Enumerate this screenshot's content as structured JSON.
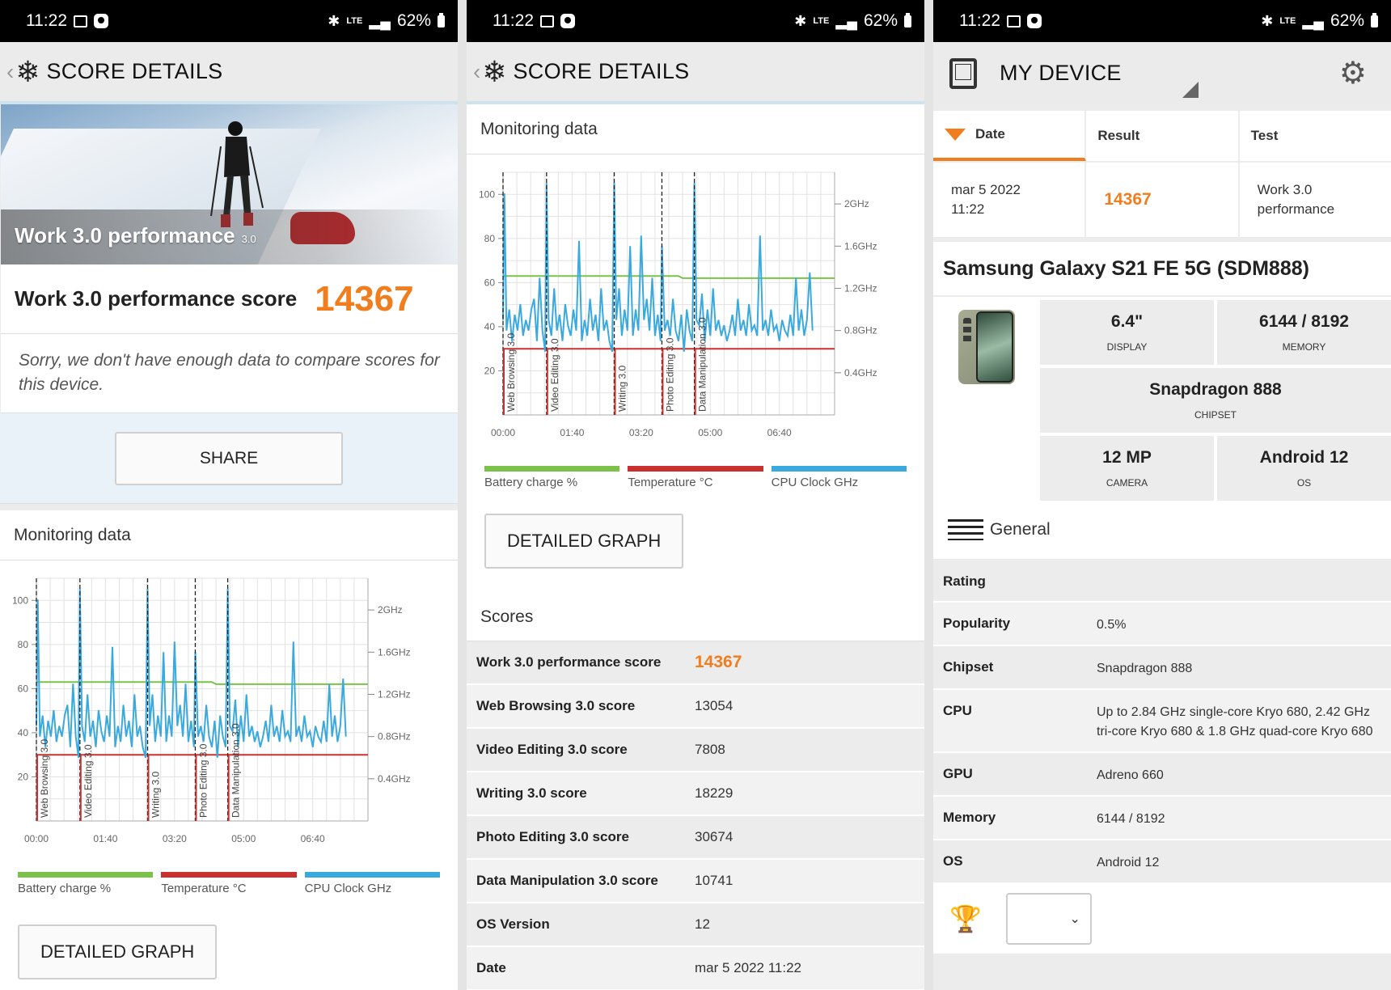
{
  "status": {
    "time": "11:22",
    "battery": "62%",
    "net": "LTE"
  },
  "colors": {
    "accent": "#f07d1e",
    "battery": "#7cc24a",
    "temperature": "#c9302f",
    "cpu": "#3aa9de",
    "divider": "#cfe3ef"
  },
  "screen1": {
    "back_icon": "back-chevron-icon",
    "title": "SCORE DETAILS",
    "hero_title": "Work 3.0 performance",
    "hero_badge": "3.0",
    "score_label": "Work 3.0 performance score",
    "score_value": "14367",
    "sorry_text": "Sorry, we don't have enough data to compare scores for this device.",
    "share_label": "SHARE",
    "monitoring_title": "Monitoring data",
    "detail_button": "DETAILED GRAPH"
  },
  "screen2": {
    "title": "SCORE DETAILS",
    "monitoring_title": "Monitoring data",
    "detail_button": "DETAILED GRAPH",
    "scores_title": "Scores",
    "rows": [
      {
        "label": "Work 3.0 performance score",
        "value": "14367"
      },
      {
        "label": "Web Browsing 3.0 score",
        "value": "13054"
      },
      {
        "label": "Video Editing 3.0 score",
        "value": "7808"
      },
      {
        "label": "Writing 3.0 score",
        "value": "18229"
      },
      {
        "label": "Photo Editing 3.0 score",
        "value": "30674"
      },
      {
        "label": "Data Manipulation 3.0 score",
        "value": "10741"
      },
      {
        "label": "OS Version",
        "value": "12"
      },
      {
        "label": "Date",
        "value": "mar 5 2022 11:22"
      }
    ]
  },
  "screen3": {
    "title": "MY DEVICE",
    "tabs": {
      "date": "Date",
      "result": "Result",
      "test": "Test"
    },
    "result": {
      "date": "mar 5 2022",
      "time": "11:22",
      "score": "14367",
      "test": "Work 3.0 performance"
    },
    "device_name": "Samsung Galaxy S21 FE 5G (SDM888)",
    "specs": {
      "display": {
        "value": "6.4\"",
        "label": "DISPLAY"
      },
      "memory": {
        "value": "6144 / 8192",
        "label": "MEMORY"
      },
      "chipset": {
        "value": "Snapdragon 888",
        "label": "CHIPSET"
      },
      "camera": {
        "value": "12 MP",
        "label": "CAMERA"
      },
      "os": {
        "value": "Android 12",
        "label": "OS"
      }
    },
    "general_label": "General",
    "info": [
      {
        "label": "Rating",
        "value": ""
      },
      {
        "label": "Popularity",
        "value": "0.5%"
      },
      {
        "label": "Chipset",
        "value": "Snapdragon 888"
      },
      {
        "label": "CPU",
        "value": "Up to 2.84 GHz single-core Kryo 680, 2.42 GHz tri-core Kryo 680 & 1.8 GHz quad-core Kryo 680"
      },
      {
        "label": "GPU",
        "value": "Adreno 660"
      },
      {
        "label": "Memory",
        "value": "6144 / 8192"
      },
      {
        "label": "OS",
        "value": "Android 12"
      }
    ]
  },
  "chart_data": {
    "type": "line",
    "title": "",
    "xlabel": "",
    "ylabel": "",
    "x_ticks": [
      "00:00",
      "01:40",
      "03:20",
      "05:00",
      "06:40"
    ],
    "y_ticks": [
      20,
      40,
      60,
      80,
      100
    ],
    "y2_ticks": [
      "0.4GHz",
      "0.8GHz",
      "1.2GHz",
      "1.6GHz",
      "2GHz"
    ],
    "ylim": [
      0,
      110
    ],
    "y2lim": [
      0,
      2.3
    ],
    "xlim_seconds": [
      0,
      480
    ],
    "grid": true,
    "markers": [
      {
        "label": "Web Browsing 3.0",
        "t": 0
      },
      {
        "label": "Video Editing 3.0",
        "t": 63
      },
      {
        "label": "Writing 3.0",
        "t": 161
      },
      {
        "label": "Photo Editing 3.0",
        "t": 230
      },
      {
        "label": "Data Manipulation 3.0",
        "t": 277
      }
    ],
    "series": [
      {
        "name": "Battery charge %",
        "axis": "left",
        "points": [
          [
            0,
            63
          ],
          [
            254,
            63
          ],
          [
            260,
            62
          ],
          [
            480,
            62
          ]
        ]
      },
      {
        "name": "Temperature °C",
        "axis": "left",
        "points": [
          [
            0,
            30
          ],
          [
            480,
            30
          ]
        ]
      },
      {
        "name": "CPU Clock GHz",
        "axis": "right",
        "points": [
          [
            0,
            0.9
          ],
          [
            2,
            2.1
          ],
          [
            5,
            0.8
          ],
          [
            9,
            1.0
          ],
          [
            13,
            0.7
          ],
          [
            17,
            0.95
          ],
          [
            21,
            0.8
          ],
          [
            25,
            1.05
          ],
          [
            29,
            0.75
          ],
          [
            33,
            0.9
          ],
          [
            37,
            0.8
          ],
          [
            41,
            1.0
          ],
          [
            45,
            1.1
          ],
          [
            49,
            0.7
          ],
          [
            53,
            1.3
          ],
          [
            57,
            0.8
          ],
          [
            61,
            0.6
          ],
          [
            63,
            2.2
          ],
          [
            66,
            0.9
          ],
          [
            70,
            0.75
          ],
          [
            74,
            1.2
          ],
          [
            78,
            0.8
          ],
          [
            82,
            0.95
          ],
          [
            86,
            0.7
          ],
          [
            90,
            1.05
          ],
          [
            94,
            0.85
          ],
          [
            98,
            0.75
          ],
          [
            102,
            1.0
          ],
          [
            106,
            0.8
          ],
          [
            110,
            1.65
          ],
          [
            114,
            0.7
          ],
          [
            118,
            0.9
          ],
          [
            122,
            0.75
          ],
          [
            126,
            1.1
          ],
          [
            130,
            0.8
          ],
          [
            134,
            0.95
          ],
          [
            138,
            0.7
          ],
          [
            142,
            1.2
          ],
          [
            146,
            0.8
          ],
          [
            150,
            0.9
          ],
          [
            154,
            0.7
          ],
          [
            158,
            0.6
          ],
          [
            161,
            2.2
          ],
          [
            164,
            0.9
          ],
          [
            168,
            1.2
          ],
          [
            172,
            0.75
          ],
          [
            176,
            1.0
          ],
          [
            180,
            0.8
          ],
          [
            184,
            1.6
          ],
          [
            188,
            0.75
          ],
          [
            192,
            1.0
          ],
          [
            196,
            0.8
          ],
          [
            200,
            1.7
          ],
          [
            204,
            0.9
          ],
          [
            208,
            1.1
          ],
          [
            212,
            0.8
          ],
          [
            216,
            1.3
          ],
          [
            220,
            0.75
          ],
          [
            224,
            0.95
          ],
          [
            228,
            0.7
          ],
          [
            230,
            1.6
          ],
          [
            234,
            0.8
          ],
          [
            238,
            0.9
          ],
          [
            242,
            0.75
          ],
          [
            246,
            1.1
          ],
          [
            250,
            0.8
          ],
          [
            254,
            0.7
          ],
          [
            258,
            0.95
          ],
          [
            262,
            0.6
          ],
          [
            266,
            1.0
          ],
          [
            270,
            0.8
          ],
          [
            274,
            0.7
          ],
          [
            277,
            2.2
          ],
          [
            280,
            0.9
          ],
          [
            284,
            0.85
          ],
          [
            288,
            1.15
          ],
          [
            292,
            0.7
          ],
          [
            296,
            1.0
          ],
          [
            300,
            0.75
          ],
          [
            304,
            1.2
          ],
          [
            308,
            0.8
          ],
          [
            312,
            0.9
          ],
          [
            316,
            0.75
          ],
          [
            320,
            0.85
          ],
          [
            324,
            0.7
          ],
          [
            328,
            0.8
          ],
          [
            332,
            0.95
          ],
          [
            336,
            0.75
          ],
          [
            340,
            1.1
          ],
          [
            344,
            0.8
          ],
          [
            348,
            0.9
          ],
          [
            352,
            0.75
          ],
          [
            356,
            1.05
          ],
          [
            360,
            0.8
          ],
          [
            364,
            0.85
          ],
          [
            368,
            0.75
          ],
          [
            372,
            1.7
          ],
          [
            376,
            0.8
          ],
          [
            380,
            0.9
          ],
          [
            384,
            0.75
          ],
          [
            388,
            1.0
          ],
          [
            392,
            0.8
          ],
          [
            396,
            0.85
          ],
          [
            400,
            0.7
          ],
          [
            404,
            0.9
          ],
          [
            408,
            0.8
          ],
          [
            412,
            0.75
          ],
          [
            416,
            0.95
          ],
          [
            420,
            0.75
          ],
          [
            424,
            1.3
          ],
          [
            428,
            0.8
          ],
          [
            432,
            1.0
          ],
          [
            436,
            0.75
          ],
          [
            440,
            0.9
          ],
          [
            444,
            1.35
          ],
          [
            448,
            0.8
          ]
        ]
      }
    ]
  }
}
